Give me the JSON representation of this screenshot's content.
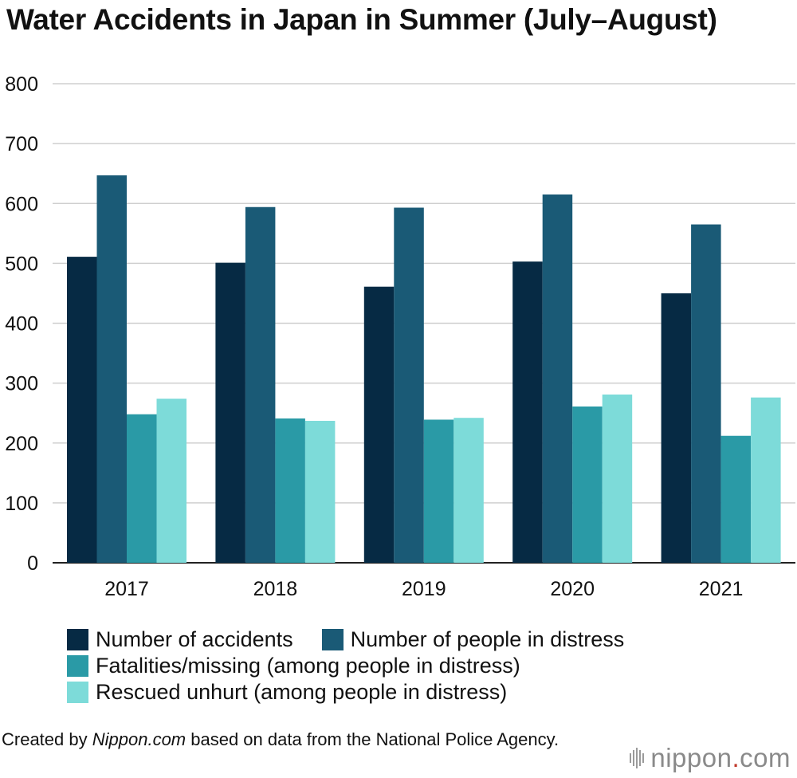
{
  "title": "Water Accidents in Japan in Summer (July–August)",
  "chart_data": {
    "type": "bar",
    "categories": [
      "2017",
      "2018",
      "2019",
      "2020",
      "2021"
    ],
    "series": [
      {
        "name": "Number of accidents",
        "color": "#062a44",
        "values": [
          511,
          501,
          461,
          503,
          450
        ]
      },
      {
        "name": "Number of people in distress",
        "color": "#1a5a76",
        "values": [
          647,
          594,
          593,
          615,
          565
        ]
      },
      {
        "name": "Fatalities/missing (among people in distress)",
        "color": "#2a9aa6",
        "values": [
          248,
          241,
          239,
          261,
          212
        ]
      },
      {
        "name": "Rescued unhurt (among people in distress)",
        "color": "#7ddbd9",
        "values": [
          274,
          237,
          242,
          281,
          276
        ]
      }
    ],
    "ylim": [
      0,
      800
    ],
    "yticks": [
      "0",
      "100",
      "200",
      "300",
      "400",
      "500",
      "600",
      "700",
      "800"
    ],
    "grid": true,
    "legend_position": "bottom"
  },
  "source": {
    "prefix": "Created by ",
    "brand": "Nippon.com",
    "suffix": " based on data from the National Police Agency."
  },
  "logo": {
    "name": "nippon",
    "dot": ".",
    "tld": "com"
  }
}
